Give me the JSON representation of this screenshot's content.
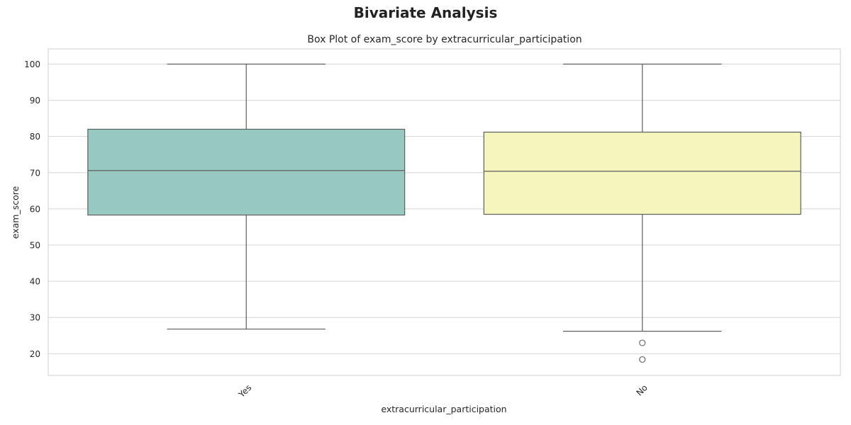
{
  "figure": {
    "suptitle": "Bivariate Analysis"
  },
  "chart_data": {
    "type": "box",
    "title": "Box Plot of exam_score by extracurricular_participation",
    "xlabel": "extracurricular_participation",
    "ylabel": "exam_score",
    "ylim": [
      14,
      104.2
    ],
    "yticks": [
      20,
      30,
      40,
      50,
      60,
      70,
      80,
      90,
      100
    ],
    "grid": true,
    "categories": [
      "Yes",
      "No"
    ],
    "boxes": [
      {
        "category": "Yes",
        "whisker_low": 26.8,
        "q1": 58.3,
        "median": 70.6,
        "q3": 82.0,
        "whisker_high": 100,
        "outliers": [],
        "color": "#97c9c1"
      },
      {
        "category": "No",
        "whisker_low": 26.2,
        "q1": 58.5,
        "median": 70.4,
        "q3": 81.2,
        "whisker_high": 100,
        "outliers": [
          23.0,
          18.4
        ],
        "color": "#f5f6bd"
      }
    ],
    "line_color": "#5e5e5e",
    "grid_color": "#d6d6d6"
  }
}
